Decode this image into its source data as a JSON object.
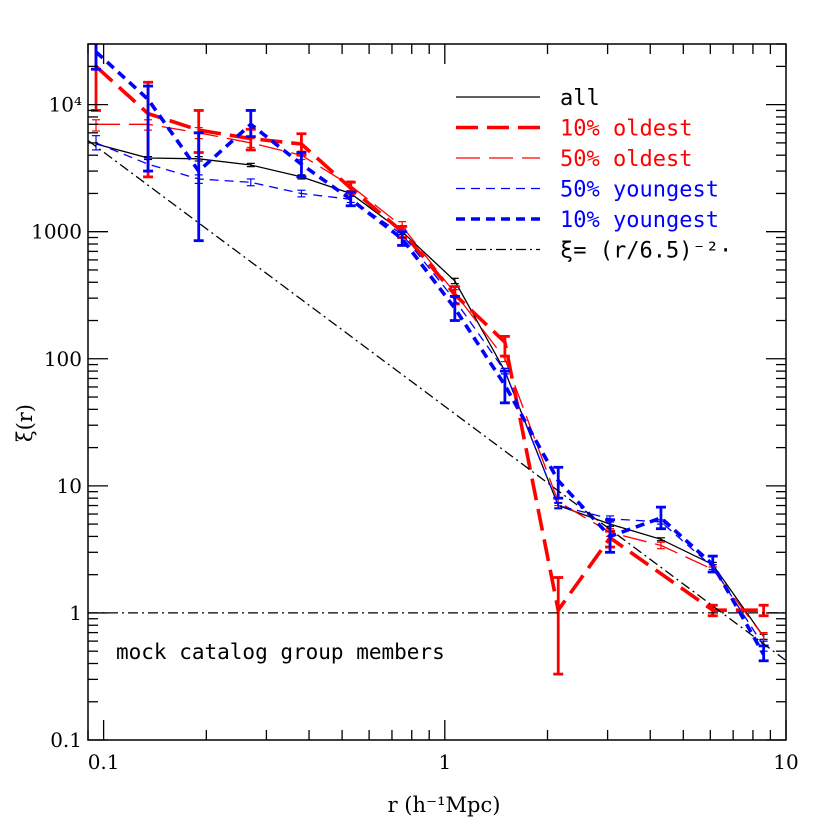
{
  "chart_data": {
    "type": "line",
    "xlabel": "r (h⁻¹Mpc)",
    "ylabel": "ξ(r)",
    "xscale": "log",
    "yscale": "log",
    "xlim": [
      0.09,
      10
    ],
    "ylim": [
      0.1,
      30000
    ],
    "x_ticks": [
      {
        "value": 0.1,
        "label": "0.1"
      },
      {
        "value": 1,
        "label": "1"
      },
      {
        "value": 10,
        "label": "10"
      }
    ],
    "y_ticks": [
      {
        "value": 0.1,
        "label": "0.1"
      },
      {
        "value": 1,
        "label": "1"
      },
      {
        "value": 10,
        "label": "10"
      },
      {
        "value": 100,
        "label": "100"
      },
      {
        "value": 1000,
        "label": "1000"
      },
      {
        "value": 10000,
        "label": "10⁴"
      }
    ],
    "legend_placement": "top-right",
    "annotation": "mock catalog group members",
    "series": [
      {
        "name": "all",
        "color": "#000000",
        "style": "solid-thin",
        "points": [
          {
            "x": 0.095,
            "y": 4900
          },
          {
            "x": 0.135,
            "y": 3800,
            "err": [
              3700,
              3900
            ]
          },
          {
            "x": 0.19,
            "y": 3750,
            "err": [
              3600,
              3900
            ]
          },
          {
            "x": 0.27,
            "y": 3350,
            "err": [
              3250,
              3450
            ]
          },
          {
            "x": 0.38,
            "y": 2700,
            "err": [
              2600,
              2800
            ]
          },
          {
            "x": 0.53,
            "y": 2000,
            "err": [
              1900,
              2100
            ]
          },
          {
            "x": 0.75,
            "y": 1000,
            "err": [
              950,
              1050
            ]
          },
          {
            "x": 1.07,
            "y": 410,
            "err": [
              390,
              430
            ]
          },
          {
            "x": 1.5,
            "y": 80,
            "err": [
              76,
              84
            ]
          },
          {
            "x": 2.15,
            "y": 7,
            "err": [
              6.7,
              7.3
            ]
          },
          {
            "x": 3.05,
            "y": 5.0,
            "err": [
              4.8,
              5.2
            ]
          },
          {
            "x": 4.3,
            "y": 3.8,
            "err": [
              3.7,
              3.9
            ]
          },
          {
            "x": 6.1,
            "y": 2.4,
            "err": [
              2.3,
              2.5
            ]
          },
          {
            "x": 8.6,
            "y": 0.65,
            "err": [
              0.62,
              0.68
            ]
          }
        ]
      },
      {
        "name": "10% oldest",
        "color": "#ff0000",
        "style": "long-dash-thick",
        "points": [
          {
            "x": 0.095,
            "y": 20000,
            "err": [
              9000,
              35000
            ]
          },
          {
            "x": 0.135,
            "y": 8500,
            "err": [
              2700,
              15000
            ]
          },
          {
            "x": 0.19,
            "y": 6300,
            "err": [
              4200,
              9000
            ]
          },
          {
            "x": 0.27,
            "y": 5400,
            "err": [
              4400,
              6400
            ]
          },
          {
            "x": 0.38,
            "y": 4900,
            "err": [
              4000,
              5900
            ]
          },
          {
            "x": 0.53,
            "y": 2200,
            "err": [
              2000,
              2450
            ]
          },
          {
            "x": 0.75,
            "y": 1000,
            "err": [
              900,
              1100
            ]
          },
          {
            "x": 1.07,
            "y": 320,
            "err": [
              270,
              370
            ]
          },
          {
            "x": 1.5,
            "y": 135,
            "err": [
              105,
              150
            ]
          },
          {
            "x": 2.15,
            "y": 1.05,
            "err": [
              0.33,
              1.9
            ]
          },
          {
            "x": 3.05,
            "y": 3.9,
            "err": [
              3.3,
              4.4
            ]
          },
          {
            "x": 6.1,
            "y": 1.05,
            "err": [
              0.95,
              1.15
            ]
          },
          {
            "x": 8.6,
            "y": 1.05,
            "err": [
              0.95,
              1.15
            ]
          }
        ]
      },
      {
        "name": "50% oldest",
        "color": "#ff0000",
        "style": "long-dash-thin",
        "points": [
          {
            "x": 0.095,
            "y": 7000,
            "err": [
              6200,
              7600
            ]
          },
          {
            "x": 0.135,
            "y": 7000,
            "err": [
              6300,
              7600
            ]
          },
          {
            "x": 0.19,
            "y": 6000,
            "err": [
              5400,
              6600
            ]
          },
          {
            "x": 0.27,
            "y": 5000,
            "err": [
              4600,
              5400
            ]
          },
          {
            "x": 0.38,
            "y": 4000,
            "err": [
              3700,
              4300
            ]
          },
          {
            "x": 0.53,
            "y": 2300,
            "err": [
              2100,
              2500
            ]
          },
          {
            "x": 0.75,
            "y": 1100,
            "err": [
              1000,
              1200
            ]
          },
          {
            "x": 1.07,
            "y": 330,
            "err": [
              310,
              350
            ]
          },
          {
            "x": 1.5,
            "y": 100,
            "err": [
              95,
              105
            ]
          },
          {
            "x": 2.15,
            "y": 7.5,
            "err": [
              7.0,
              8.0
            ]
          },
          {
            "x": 3.05,
            "y": 4.3,
            "err": [
              4.0,
              4.6
            ]
          },
          {
            "x": 4.3,
            "y": 3.4,
            "err": [
              3.2,
              3.6
            ]
          },
          {
            "x": 6.1,
            "y": 2.2,
            "err": [
              2.1,
              2.3
            ]
          },
          {
            "x": 8.6,
            "y": 0.65,
            "err": [
              0.6,
              0.7
            ]
          }
        ]
      },
      {
        "name": "50% youngest",
        "color": "#0000ff",
        "style": "short-dash-thin",
        "points": [
          {
            "x": 0.095,
            "y": 5000,
            "err": [
              4400,
              5700
            ]
          },
          {
            "x": 0.135,
            "y": 3400,
            "err": [
              3000,
              3800
            ]
          },
          {
            "x": 0.19,
            "y": 2600,
            "err": [
              2400,
              2800
            ]
          },
          {
            "x": 0.27,
            "y": 2450,
            "err": [
              2300,
              2600
            ]
          },
          {
            "x": 0.38,
            "y": 2000,
            "err": [
              1880,
              2120
            ]
          },
          {
            "x": 0.53,
            "y": 1800,
            "err": [
              1700,
              1900
            ]
          },
          {
            "x": 0.75,
            "y": 950,
            "err": [
              900,
              1000
            ]
          },
          {
            "x": 1.07,
            "y": 290,
            "err": [
              275,
              305
            ]
          },
          {
            "x": 1.5,
            "y": 80,
            "err": [
              76,
              84
            ]
          },
          {
            "x": 2.15,
            "y": 7,
            "err": [
              6.6,
              7.4
            ]
          },
          {
            "x": 3.05,
            "y": 5.5,
            "err": [
              5.2,
              5.8
            ]
          },
          {
            "x": 4.3,
            "y": 5.2,
            "err": [
              5.0,
              5.4
            ]
          },
          {
            "x": 6.1,
            "y": 2.3,
            "err": [
              2.2,
              2.4
            ]
          },
          {
            "x": 8.6,
            "y": 0.55,
            "err": [
              0.5,
              0.6
            ]
          }
        ]
      },
      {
        "name": "10% youngest",
        "color": "#0000ff",
        "style": "short-dash-thick",
        "points": [
          {
            "x": 0.095,
            "y": 26000,
            "err": [
              19000,
              34000
            ]
          },
          {
            "x": 0.135,
            "y": 11000,
            "err": [
              3000,
              14000
            ]
          },
          {
            "x": 0.19,
            "y": 3000,
            "err": [
              850,
              6000
            ]
          },
          {
            "x": 0.27,
            "y": 7000,
            "err": [
              5600,
              9000
            ]
          },
          {
            "x": 0.38,
            "y": 3400,
            "err": [
              2700,
              4200
            ]
          },
          {
            "x": 0.53,
            "y": 1800,
            "err": [
              1600,
              2050
            ]
          },
          {
            "x": 0.75,
            "y": 880,
            "err": [
              780,
              1000
            ]
          },
          {
            "x": 1.07,
            "y": 250,
            "err": [
              200,
              310
            ]
          },
          {
            "x": 1.5,
            "y": 62,
            "err": [
              45,
              80
            ]
          },
          {
            "x": 2.15,
            "y": 11,
            "err": [
              8,
              14
            ]
          },
          {
            "x": 3.05,
            "y": 4.0,
            "err": [
              3.0,
              5.4
            ]
          },
          {
            "x": 4.3,
            "y": 5.6,
            "err": [
              4.6,
              6.8
            ]
          },
          {
            "x": 6.1,
            "y": 2.4,
            "err": [
              2.1,
              2.8
            ]
          },
          {
            "x": 8.6,
            "y": 0.47,
            "err": [
              0.42,
              0.55
            ]
          }
        ]
      },
      {
        "name": "ξ= (r/6.5)⁻²·",
        "color": "#000000",
        "style": "dash-dot",
        "function": "powerlaw",
        "r0": 6.5,
        "gamma": 2.0
      },
      {
        "name": "",
        "color": "#000000",
        "style": "dash-dot",
        "function": "constant",
        "value": 1
      }
    ]
  }
}
